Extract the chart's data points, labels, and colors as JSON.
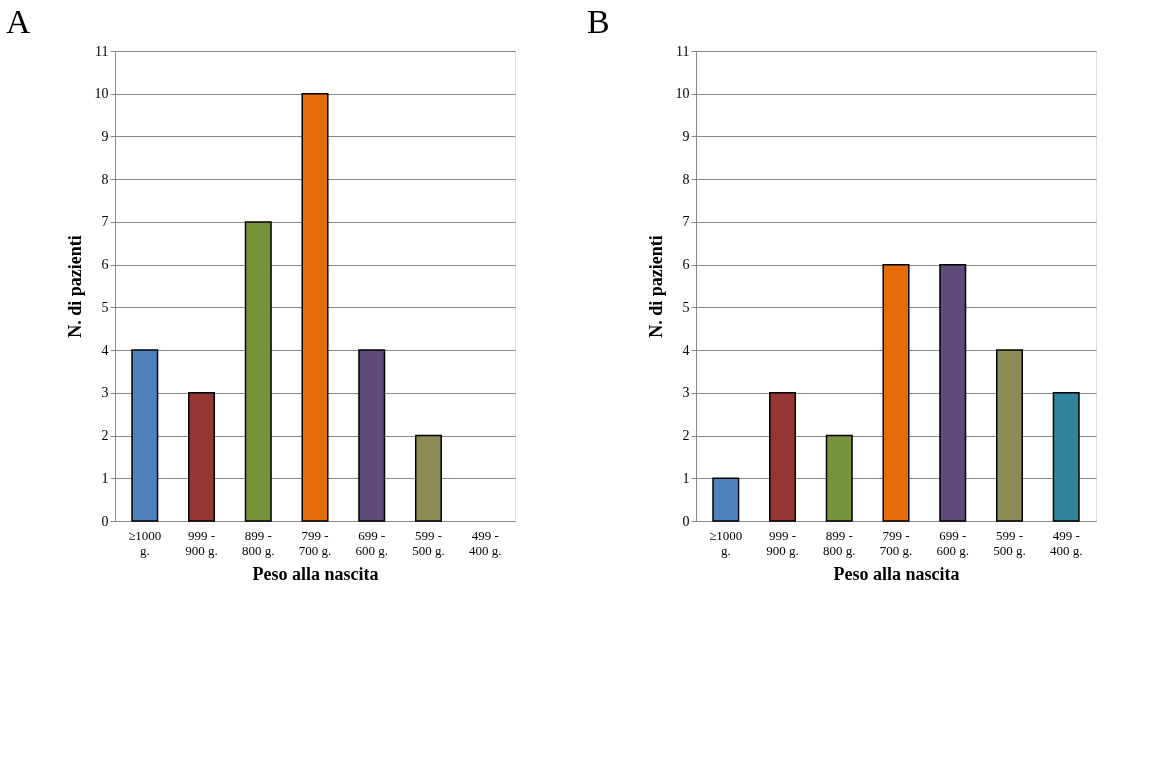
{
  "chart_data": [
    {
      "type": "bar",
      "title": "A",
      "xlabel": "Peso alla nascita",
      "ylabel": "N. di pazienti",
      "categories": [
        "≥1000 g.",
        "999 - 900 g.",
        "899 - 800 g.",
        "799 - 700 g.",
        "699 - 600 g.",
        "599 - 500 g.",
        "499 - 400 g."
      ],
      "values": [
        4,
        3,
        7,
        10,
        4,
        2,
        null
      ],
      "colors": [
        "#4f81bd",
        "#943634",
        "#77933c",
        "#e46c0a",
        "#5f4a7b",
        "#8c8a55",
        null
      ],
      "ylim": [
        0,
        11
      ],
      "yticks": [
        0,
        1,
        2,
        3,
        4,
        5,
        6,
        7,
        8,
        9,
        10,
        11
      ],
      "grid": "y"
    },
    {
      "type": "bar",
      "title": "B",
      "xlabel": "Peso alla nascita",
      "ylabel": "N. di pazienti",
      "categories": [
        "≥1000 g.",
        "999 - 900 g.",
        "899 - 800 g.",
        "799 - 700 g.",
        "699 - 600 g.",
        "599 - 500 g.",
        "499 - 400 g."
      ],
      "values": [
        1,
        3,
        2,
        6,
        6,
        4,
        3
      ],
      "colors": [
        "#4f81bd",
        "#943634",
        "#77933c",
        "#e46c0a",
        "#5f4a7b",
        "#8c8a55",
        "#31849b"
      ],
      "ylim": [
        0,
        11
      ],
      "yticks": [
        0,
        1,
        2,
        3,
        4,
        5,
        6,
        7,
        8,
        9,
        10,
        11
      ],
      "grid": "y"
    }
  ]
}
